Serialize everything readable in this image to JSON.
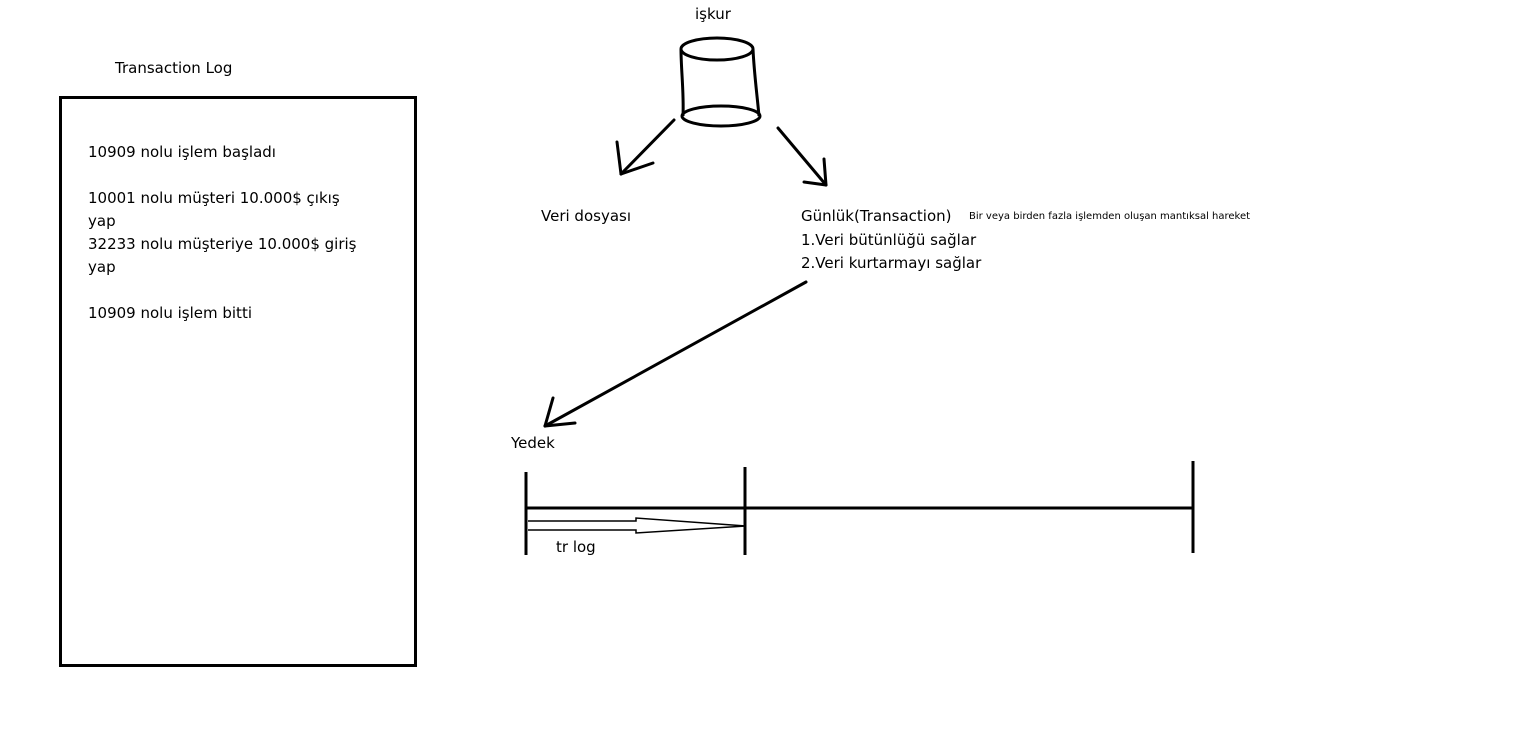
{
  "transaction_log": {
    "title": "Transaction Log",
    "entries": [
      "10909 nolu işlem başladı",
      "10001 nolu müşteri 10.000$ çıkış yap",
      "32233 nolu müşteriye 10.000$ giriş yap",
      "10909 nolu işlem bitti"
    ]
  },
  "database": {
    "label": "işkur"
  },
  "data_file": {
    "label": "Veri dosyası"
  },
  "journal": {
    "title": "Günlük(Transaction)",
    "definition": "Bir veya birden fazla işlemden oluşan mantıksal hareket",
    "points": [
      "1.Veri bütünlüğü sağlar",
      "2.Veri kurtarmayı sağlar"
    ]
  },
  "backup": {
    "label": "Yedek"
  },
  "timeline": {
    "segment_label": "tr log"
  },
  "colors": {
    "stroke": "#000000",
    "background": "#ffffff"
  }
}
